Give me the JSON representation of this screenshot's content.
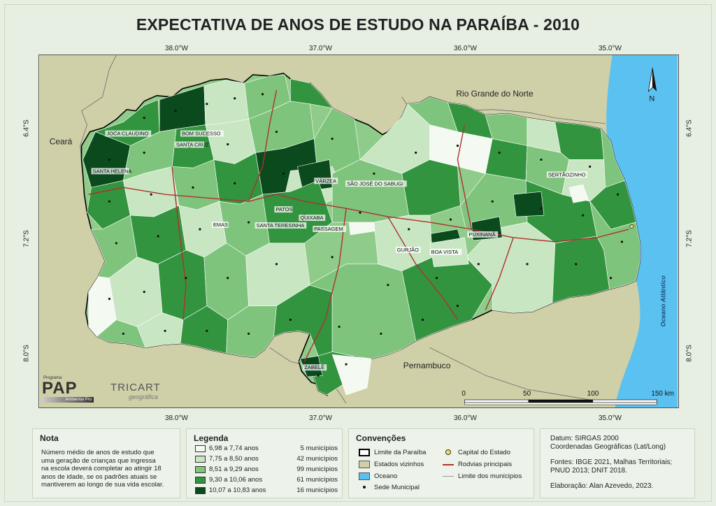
{
  "title": "EXPECTATIVA DE ANOS DE ESTUDO NA PARAÍBA - 2010",
  "longitudes": [
    "38.0°W",
    "37.0°W",
    "36.0°W",
    "35.0°W"
  ],
  "latitudes": [
    "6.4°S",
    "7.2°S",
    "8.0°S"
  ],
  "map": {
    "neighbors": {
      "rn": "Rio Grande do Norte",
      "ce": "Ceará",
      "pe": "Pernambuco"
    },
    "ocean_label": "Oceano Atlântico",
    "north_label": "N",
    "cities": [
      "JOCA CLAUDINO",
      "BOM SUCESSO",
      "SANTA CRUZ",
      "SANTA HELENA",
      "VÁRZEA",
      "SÃO JOSÉ DO SABUGI",
      "PATOS",
      "QUIXABA",
      "EMAS",
      "SANTA TERESINHA",
      "PASSAGEM",
      "GURJÃO",
      "BOA VISTA",
      "PUXINANÃ",
      "SERTÃOZINHO",
      "ZABELÊ"
    ],
    "scale": {
      "ticks": [
        "0",
        "50",
        "100",
        "150 km"
      ]
    }
  },
  "colors": {
    "class1": "#f4faf1",
    "class2": "#c8e6c1",
    "class3": "#7fc47d",
    "class4": "#33943f",
    "class5": "#0a4a1c",
    "neighbor": "#cfcfa8",
    "ocean": "#5bc1f0",
    "road": "#b03030"
  },
  "logos": {
    "pap_small": "Programa",
    "pap": "PAP",
    "pap_sub": "Ambiental Pro",
    "tricart": "TRICART",
    "tricart_sub": "geográfica"
  },
  "nota": {
    "title": "Nota",
    "lines": [
      "Número médio de anos de estudo que",
      "uma geração de crianças que ingressa",
      "na escola deverá completar ao atingir 18",
      "anos de idade, se os padrões atuais se",
      "mantiverem ao longo de sua vida escolar."
    ]
  },
  "legenda": {
    "title": "Legenda",
    "items": [
      {
        "label": "6,98 a 7,74 anos",
        "count": "5 municípios"
      },
      {
        "label": "7,75 a 8,50 anos",
        "count": "42 municípios"
      },
      {
        "label": "8,51 a 9,29 anos",
        "count": "99 municípios"
      },
      {
        "label": "9,30 a 10,06 anos",
        "count": "61 municípios"
      },
      {
        "label": "10,07 a 10,83 anos",
        "count": "16 municípios"
      }
    ]
  },
  "convencoes": {
    "title": "Convenções",
    "limite": "Limite da Paraíba",
    "estados": "Estados vizinhos",
    "oceano": "Oceano",
    "sede": "Sede Municipal",
    "capital": "Capital do Estado",
    "rodovias": "Rodvias principais",
    "municipios": "Limite dos munícipios"
  },
  "info": {
    "datum": "Datum: SIRGAS 2000",
    "coords": "Coordenadas Geográficas (Lat/Long)",
    "fontes1": "Fontes: IBGE 2021, Malhas Territoriais;",
    "fontes2": "PNUD 2013; DNIT 2018.",
    "elaboracao": "Elaboração: Alan Azevedo, 2023."
  }
}
